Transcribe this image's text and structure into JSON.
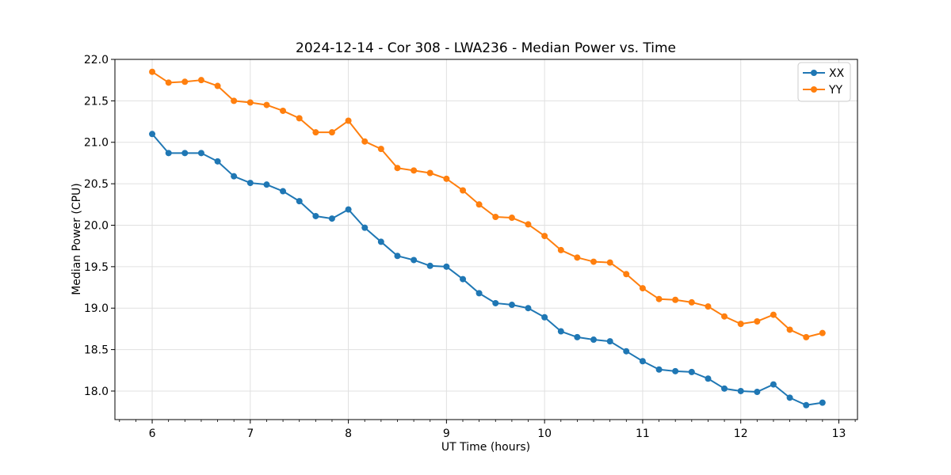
{
  "figure": {
    "background": "#ffffff",
    "axis_color": "#000000",
    "grid_color": "#e0e0e0",
    "legend_border_color": "#cccccc"
  },
  "chart_data": {
    "type": "line",
    "title": "2024-12-14 - Cor 308 - LWA236 - Median Power vs. Time",
    "xlabel": "UT Time (hours)",
    "ylabel": "Median Power (CPU)",
    "xlim": [
      5.62,
      13.19
    ],
    "ylim": [
      17.656,
      22.0
    ],
    "grid": "major-both",
    "legend_position": "upper right",
    "x_ticks": [
      6,
      7,
      8,
      9,
      10,
      11,
      12,
      13
    ],
    "x_tick_labels": [
      "6",
      "7",
      "8",
      "9",
      "10",
      "11",
      "12",
      "13"
    ],
    "x_minor_divisions": 6,
    "y_ticks": [
      18.0,
      18.5,
      19.0,
      19.5,
      20.0,
      20.5,
      21.0,
      21.5,
      22.0
    ],
    "y_tick_labels": [
      "18.0",
      "18.5",
      "19.0",
      "19.5",
      "20.0",
      "20.5",
      "21.0",
      "21.5",
      "22.0"
    ],
    "x": [
      6.0,
      6.167,
      6.333,
      6.5,
      6.667,
      6.833,
      7.0,
      7.167,
      7.333,
      7.5,
      7.667,
      7.833,
      8.0,
      8.167,
      8.333,
      8.5,
      8.667,
      8.833,
      9.0,
      9.167,
      9.333,
      9.5,
      9.667,
      9.833,
      10.0,
      10.167,
      10.333,
      10.5,
      10.667,
      10.833,
      11.0,
      11.167,
      11.333,
      11.5,
      11.667,
      11.833,
      12.0,
      12.167,
      12.333,
      12.5,
      12.667,
      12.833
    ],
    "series": [
      {
        "name": "XX",
        "color": "#1f77b4",
        "values": [
          21.1,
          20.87,
          20.87,
          20.87,
          20.77,
          20.59,
          20.51,
          20.49,
          20.41,
          20.29,
          20.11,
          20.08,
          20.19,
          19.97,
          19.8,
          19.63,
          19.58,
          19.51,
          19.5,
          19.35,
          19.18,
          19.06,
          19.04,
          19.0,
          18.89,
          18.72,
          18.65,
          18.62,
          18.6,
          18.48,
          18.36,
          18.26,
          18.24,
          18.23,
          18.15,
          18.03,
          18.0,
          17.99,
          18.08,
          17.92,
          17.83,
          17.86
        ]
      },
      {
        "name": "YY",
        "color": "#ff7f0e",
        "values": [
          21.85,
          21.72,
          21.73,
          21.75,
          21.68,
          21.5,
          21.48,
          21.45,
          21.38,
          21.29,
          21.12,
          21.12,
          21.26,
          21.01,
          20.92,
          20.69,
          20.66,
          20.63,
          20.56,
          20.42,
          20.25,
          20.1,
          20.09,
          20.01,
          19.87,
          19.7,
          19.61,
          19.56,
          19.55,
          19.41,
          19.24,
          19.11,
          19.1,
          19.07,
          19.02,
          18.9,
          18.81,
          18.84,
          18.92,
          18.74,
          18.65,
          18.7
        ]
      }
    ]
  }
}
